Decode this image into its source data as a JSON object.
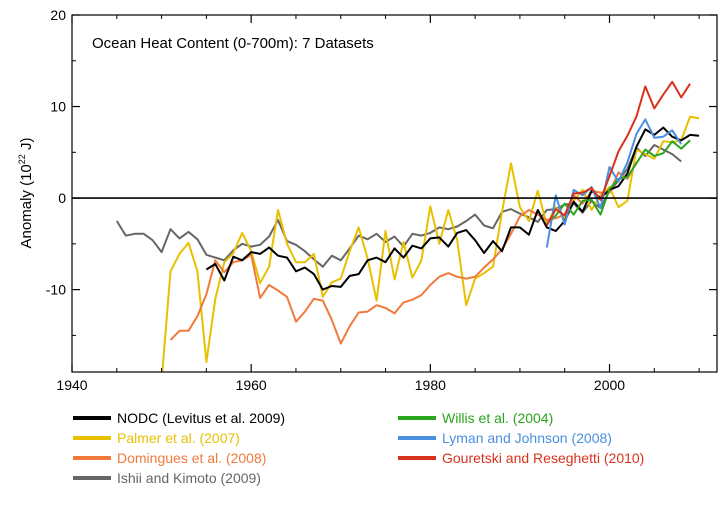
{
  "chart_data": {
    "type": "line",
    "title": "Ocean Heat Content (0-700m): 7 Datasets",
    "ylabel_prefix": "Anomaly (10",
    "ylabel_exponent": "22",
    "ylabel_suffix": " J)",
    "xlim": [
      1940,
      2012
    ],
    "ylim": [
      -19,
      20
    ],
    "xticks": [
      1940,
      1960,
      1980,
      2000
    ],
    "yticks": [
      -10,
      0,
      10,
      20
    ],
    "zero_line": true,
    "grid": false,
    "series": [
      {
        "name": "Ishii and Kimoto (2009)",
        "color": "#666666",
        "points": [
          [
            1945,
            -2.5
          ],
          [
            1946,
            -4.1
          ],
          [
            1947,
            -3.9
          ],
          [
            1948,
            -3.9
          ],
          [
            1949,
            -4.6
          ],
          [
            1950,
            -5.9
          ],
          [
            1951,
            -3.4
          ],
          [
            1952,
            -4.4
          ],
          [
            1953,
            -3.7
          ],
          [
            1954,
            -4.5
          ],
          [
            1955,
            -6.2
          ],
          [
            1956,
            -6.5
          ],
          [
            1957,
            -6.8
          ],
          [
            1958,
            -5.7
          ],
          [
            1959,
            -5.0
          ],
          [
            1960,
            -5.3
          ],
          [
            1961,
            -5.1
          ],
          [
            1962,
            -4.2
          ],
          [
            1963,
            -2.4
          ],
          [
            1964,
            -4.7
          ],
          [
            1965,
            -5.1
          ],
          [
            1966,
            -5.8
          ],
          [
            1967,
            -6.7
          ],
          [
            1968,
            -7.5
          ],
          [
            1969,
            -6.3
          ],
          [
            1970,
            -6.8
          ],
          [
            1971,
            -5.5
          ],
          [
            1972,
            -4.1
          ],
          [
            1973,
            -4.5
          ],
          [
            1974,
            -3.9
          ],
          [
            1975,
            -4.8
          ],
          [
            1976,
            -4.2
          ],
          [
            1977,
            -5.3
          ],
          [
            1978,
            -3.9
          ],
          [
            1979,
            -4.1
          ],
          [
            1980,
            -3.8
          ],
          [
            1981,
            -3.2
          ],
          [
            1982,
            -3.4
          ],
          [
            1983,
            -3.1
          ],
          [
            1984,
            -2.5
          ],
          [
            1985,
            -1.8
          ],
          [
            1986,
            -3.0
          ],
          [
            1987,
            -3.3
          ],
          [
            1988,
            -1.5
          ],
          [
            1989,
            -1.2
          ],
          [
            1990,
            -1.7
          ],
          [
            1991,
            -2.1
          ],
          [
            1992,
            -2.6
          ],
          [
            1993,
            -1.3
          ],
          [
            1994,
            -1.2
          ],
          [
            1995,
            -0.7
          ],
          [
            1996,
            -0.6
          ],
          [
            1997,
            -1.6
          ],
          [
            1998,
            -0.3
          ],
          [
            1999,
            -1.1
          ],
          [
            2000,
            0.8
          ],
          [
            2001,
            1.9
          ],
          [
            2002,
            3.2
          ],
          [
            2003,
            5.5
          ],
          [
            2004,
            4.6
          ],
          [
            2005,
            5.8
          ],
          [
            2006,
            5.3
          ],
          [
            2007,
            4.8
          ],
          [
            2008,
            4.0
          ]
        ]
      },
      {
        "name": "Palmer et al. (2007)",
        "color": "#e8c000",
        "points": [
          [
            1950,
            -20
          ],
          [
            1951,
            -8.0
          ],
          [
            1952,
            -6.1
          ],
          [
            1953,
            -4.9
          ],
          [
            1954,
            -8.0
          ],
          [
            1955,
            -17.9
          ],
          [
            1956,
            -11.0
          ],
          [
            1957,
            -7.0
          ],
          [
            1958,
            -6.0
          ],
          [
            1959,
            -3.8
          ],
          [
            1960,
            -5.8
          ],
          [
            1961,
            -9.3
          ],
          [
            1962,
            -7.5
          ],
          [
            1963,
            -1.3
          ],
          [
            1964,
            -5.0
          ],
          [
            1965,
            -7.0
          ],
          [
            1966,
            -7.0
          ],
          [
            1967,
            -6.1
          ],
          [
            1968,
            -10.8
          ],
          [
            1969,
            -9.2
          ],
          [
            1970,
            -8.8
          ],
          [
            1971,
            -5.8
          ],
          [
            1972,
            -3.2
          ],
          [
            1973,
            -6.6
          ],
          [
            1974,
            -11.2
          ],
          [
            1975,
            -3.6
          ],
          [
            1976,
            -8.9
          ],
          [
            1977,
            -4.8
          ],
          [
            1978,
            -8.7
          ],
          [
            1979,
            -6.8
          ],
          [
            1980,
            -0.9
          ],
          [
            1981,
            -5.0
          ],
          [
            1982,
            -1.3
          ],
          [
            1983,
            -4.6
          ],
          [
            1984,
            -11.7
          ],
          [
            1985,
            -8.8
          ],
          [
            1986,
            -8.2
          ],
          [
            1987,
            -7.5
          ],
          [
            1988,
            -1.5
          ],
          [
            1989,
            3.8
          ],
          [
            1990,
            -1.0
          ],
          [
            1991,
            -2.5
          ],
          [
            1992,
            0.8
          ],
          [
            1993,
            -2.9
          ],
          [
            1994,
            -1.0
          ],
          [
            1995,
            -2.2
          ],
          [
            1996,
            -0.3
          ],
          [
            1997,
            0.9
          ],
          [
            1998,
            -1.3
          ],
          [
            1999,
            0.3
          ],
          [
            2000,
            1.2
          ],
          [
            2001,
            -1.0
          ],
          [
            2002,
            -0.3
          ],
          [
            2003,
            5.3
          ],
          [
            2004,
            4.8
          ],
          [
            2005,
            4.3
          ],
          [
            2006,
            6.2
          ],
          [
            2007,
            6.1
          ],
          [
            2008,
            6.3
          ],
          [
            2009,
            8.9
          ],
          [
            2010,
            8.7
          ]
        ]
      },
      {
        "name": "Domingues et al. (2008)",
        "color": "#f07a3c",
        "points": [
          [
            1951,
            -15.5
          ],
          [
            1952,
            -14.5
          ],
          [
            1953,
            -14.5
          ],
          [
            1954,
            -12.9
          ],
          [
            1955,
            -10.5
          ],
          [
            1956,
            -6.8
          ],
          [
            1957,
            -8.1
          ],
          [
            1958,
            -7.0
          ],
          [
            1959,
            -6.8
          ],
          [
            1960,
            -6.2
          ],
          [
            1961,
            -10.9
          ],
          [
            1962,
            -9.5
          ],
          [
            1963,
            -10.1
          ],
          [
            1964,
            -10.8
          ],
          [
            1965,
            -13.5
          ],
          [
            1966,
            -12.4
          ],
          [
            1967,
            -11.0
          ],
          [
            1968,
            -11.2
          ],
          [
            1969,
            -13.3
          ],
          [
            1970,
            -15.9
          ],
          [
            1971,
            -14.0
          ],
          [
            1972,
            -12.5
          ],
          [
            1973,
            -12.4
          ],
          [
            1974,
            -11.7
          ],
          [
            1975,
            -12.0
          ],
          [
            1976,
            -12.6
          ],
          [
            1977,
            -11.4
          ],
          [
            1978,
            -11.1
          ],
          [
            1979,
            -10.6
          ],
          [
            1980,
            -9.5
          ],
          [
            1981,
            -8.6
          ],
          [
            1982,
            -8.2
          ],
          [
            1983,
            -8.6
          ],
          [
            1984,
            -8.8
          ],
          [
            1985,
            -8.6
          ],
          [
            1986,
            -7.6
          ],
          [
            1987,
            -6.7
          ],
          [
            1988,
            -5.6
          ],
          [
            1989,
            -3.9
          ],
          [
            1990,
            -2.0
          ],
          [
            1991,
            -1.3
          ],
          [
            1992,
            -1.8
          ],
          [
            1993,
            -2.4
          ],
          [
            1994,
            -2.2
          ],
          [
            1995,
            -1.8
          ],
          [
            1996,
            0.3
          ],
          [
            1997,
            -0.6
          ],
          [
            1998,
            0.8
          ],
          [
            1999,
            0.6
          ],
          [
            2000,
            0.6
          ],
          [
            2001,
            2.8
          ],
          [
            2002,
            2.1
          ],
          [
            2003,
            3.9
          ]
        ]
      },
      {
        "name": "NODC (Levitus et al. 2009)",
        "color": "#000000",
        "points": [
          [
            1955,
            -7.8
          ],
          [
            1956,
            -7.2
          ],
          [
            1957,
            -9.0
          ],
          [
            1958,
            -6.4
          ],
          [
            1959,
            -6.8
          ],
          [
            1960,
            -5.9
          ],
          [
            1961,
            -6.1
          ],
          [
            1962,
            -5.4
          ],
          [
            1963,
            -6.3
          ],
          [
            1964,
            -6.5
          ],
          [
            1965,
            -8.0
          ],
          [
            1966,
            -7.6
          ],
          [
            1967,
            -8.3
          ],
          [
            1968,
            -10.0
          ],
          [
            1969,
            -9.6
          ],
          [
            1970,
            -9.7
          ],
          [
            1971,
            -8.5
          ],
          [
            1972,
            -8.3
          ],
          [
            1973,
            -6.8
          ],
          [
            1974,
            -6.5
          ],
          [
            1975,
            -7.0
          ],
          [
            1976,
            -5.5
          ],
          [
            1977,
            -6.5
          ],
          [
            1978,
            -5.2
          ],
          [
            1979,
            -5.5
          ],
          [
            1980,
            -4.4
          ],
          [
            1981,
            -4.3
          ],
          [
            1982,
            -5.3
          ],
          [
            1983,
            -3.8
          ],
          [
            1984,
            -3.5
          ],
          [
            1985,
            -4.6
          ],
          [
            1986,
            -6.0
          ],
          [
            1987,
            -4.7
          ],
          [
            1988,
            -5.8
          ],
          [
            1989,
            -3.2
          ],
          [
            1990,
            -3.2
          ],
          [
            1991,
            -4.0
          ],
          [
            1992,
            -1.3
          ],
          [
            1993,
            -3.2
          ],
          [
            1994,
            -3.6
          ],
          [
            1995,
            -2.5
          ],
          [
            1996,
            -0.4
          ],
          [
            1997,
            -1.5
          ],
          [
            1998,
            0.8
          ],
          [
            1999,
            0.0
          ],
          [
            2000,
            0.9
          ],
          [
            2001,
            1.3
          ],
          [
            2002,
            2.7
          ],
          [
            2003,
            5.6
          ],
          [
            2004,
            7.5
          ],
          [
            2005,
            6.9
          ],
          [
            2006,
            7.7
          ],
          [
            2007,
            6.7
          ],
          [
            2008,
            6.3
          ],
          [
            2009,
            6.9
          ],
          [
            2010,
            6.8
          ]
        ]
      },
      {
        "name": "Willis et al. (2004)",
        "color": "#2aa51c",
        "points": [
          [
            1993,
            -2.8
          ],
          [
            1994,
            -1.9
          ],
          [
            1995,
            -0.6
          ],
          [
            1996,
            -1.8
          ],
          [
            1997,
            -0.3
          ],
          [
            1998,
            -0.2
          ],
          [
            1999,
            -1.8
          ],
          [
            2000,
            1.0
          ],
          [
            2001,
            2.1
          ],
          [
            2002,
            2.3
          ],
          [
            2003,
            3.8
          ],
          [
            2004,
            5.3
          ],
          [
            2005,
            4.6
          ],
          [
            2006,
            4.9
          ],
          [
            2007,
            6.2
          ],
          [
            2008,
            5.4
          ],
          [
            2009,
            6.3
          ]
        ]
      },
      {
        "name": "Lyman and Johnson (2008)",
        "color": "#4a8fe0",
        "points": [
          [
            1993,
            -5.4
          ],
          [
            1994,
            0.3
          ],
          [
            1995,
            -2.9
          ],
          [
            1996,
            0.9
          ],
          [
            1997,
            0.3
          ],
          [
            1998,
            1.2
          ],
          [
            1999,
            -1.1
          ],
          [
            2000,
            3.4
          ],
          [
            2001,
            1.8
          ],
          [
            2002,
            3.9
          ],
          [
            2003,
            7.0
          ],
          [
            2004,
            8.6
          ],
          [
            2005,
            6.6
          ],
          [
            2006,
            6.7
          ],
          [
            2007,
            7.4
          ],
          [
            2008,
            5.9
          ]
        ]
      },
      {
        "name": "Gouretski and Reseghetti (2010)",
        "color": "#d8321f",
        "points": [
          [
            1993,
            -3.0
          ],
          [
            1994,
            -1.2
          ],
          [
            1995,
            -1.9
          ],
          [
            1996,
            0.5
          ],
          [
            1997,
            0.6
          ],
          [
            1998,
            1.1
          ],
          [
            1999,
            -0.2
          ],
          [
            2000,
            2.4
          ],
          [
            2001,
            5.1
          ],
          [
            2002,
            6.8
          ],
          [
            2003,
            8.9
          ],
          [
            2004,
            12.2
          ],
          [
            2005,
            9.8
          ],
          [
            2006,
            11.3
          ],
          [
            2007,
            12.7
          ],
          [
            2008,
            11.0
          ],
          [
            2009,
            12.5
          ]
        ]
      }
    ],
    "legend": {
      "placement": "bottom",
      "columns": [
        [
          "NODC (Levitus et al. 2009)",
          "Palmer et al. (2007)",
          "Domingues et al. (2008)",
          "Ishii and Kimoto (2009)"
        ],
        [
          "Willis et al. (2004)",
          "Lyman and Johnson (2008)",
          "Gouretski and Reseghetti (2010)"
        ]
      ]
    }
  }
}
